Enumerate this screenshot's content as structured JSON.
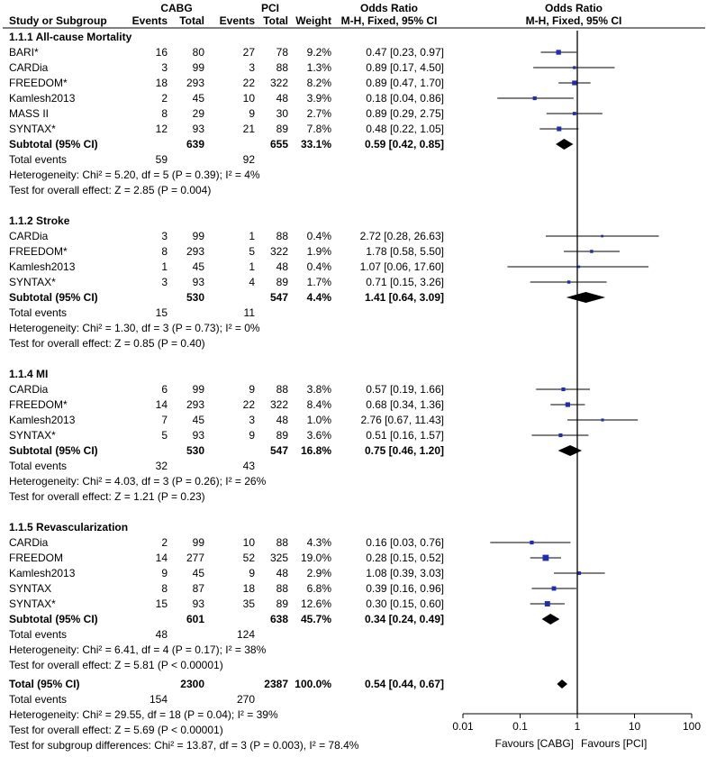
{
  "chart_data": {
    "type": "forest",
    "columns": {
      "group1": "CABG",
      "group2": "PCI",
      "study": "Study or Subgroup",
      "events": "Events",
      "total": "Total",
      "weight": "Weight",
      "or": "Odds Ratio",
      "method": "M-H, Fixed, 95% CI"
    },
    "axis": {
      "scale": "log",
      "ticks": [
        "0.01",
        "0.1",
        "1",
        "10",
        "100"
      ],
      "tick_values": [
        0.01,
        0.1,
        1,
        10,
        100
      ],
      "xlim": [
        0.01,
        100
      ],
      "favours_left": "Favours [CABG]",
      "favours_right": "Favours [PCI]"
    },
    "subgroups": [
      {
        "title": "1.1.1 All-cause Mortality",
        "studies": [
          {
            "name": "BARI*",
            "e1": "16",
            "t1": "80",
            "e2": "27",
            "t2": "78",
            "weight": "9.2%",
            "ci_text": "0.47 [0.23, 0.97]",
            "or": 0.47,
            "lo": 0.23,
            "hi": 0.97
          },
          {
            "name": "CARDia",
            "e1": "3",
            "t1": "99",
            "e2": "3",
            "t2": "88",
            "weight": "1.3%",
            "ci_text": "0.89 [0.17, 4.50]",
            "or": 0.89,
            "lo": 0.17,
            "hi": 4.5
          },
          {
            "name": "FREEDOM*",
            "e1": "18",
            "t1": "293",
            "e2": "22",
            "t2": "322",
            "weight": "8.2%",
            "ci_text": "0.89 [0.47, 1.70]",
            "or": 0.89,
            "lo": 0.47,
            "hi": 1.7
          },
          {
            "name": "Kamlesh2013",
            "e1": "2",
            "t1": "45",
            "e2": "10",
            "t2": "48",
            "weight": "3.9%",
            "ci_text": "0.18 [0.04, 0.86]",
            "or": 0.18,
            "lo": 0.04,
            "hi": 0.86
          },
          {
            "name": "MASS II",
            "e1": "8",
            "t1": "29",
            "e2": "9",
            "t2": "30",
            "weight": "2.7%",
            "ci_text": "0.89 [0.29, 2.75]",
            "or": 0.89,
            "lo": 0.29,
            "hi": 2.75
          },
          {
            "name": "SYNTAX*",
            "e1": "12",
            "t1": "93",
            "e2": "21",
            "t2": "89",
            "weight": "7.8%",
            "ci_text": "0.48 [0.22, 1.05]",
            "or": 0.48,
            "lo": 0.22,
            "hi": 1.05
          }
        ],
        "subtotal": {
          "label": "Subtotal (95% CI)",
          "t1": "639",
          "t2": "655",
          "weight": "33.1%",
          "ci_text": "0.59 [0.42, 0.85]",
          "or": 0.59,
          "lo": 0.42,
          "hi": 0.85
        },
        "total_events": {
          "label": "Total events",
          "e1": "59",
          "e2": "92"
        },
        "heterogeneity": "Heterogeneity: Chi² = 5.20, df = 5 (P = 0.39); I² = 4%",
        "overall_effect": "Test for overall effect: Z = 2.85 (P = 0.004)"
      },
      {
        "title": "1.1.2 Stroke",
        "studies": [
          {
            "name": "CARDia",
            "e1": "3",
            "t1": "99",
            "e2": "1",
            "t2": "88",
            "weight": "0.4%",
            "ci_text": "2.72 [0.28, 26.63]",
            "or": 2.72,
            "lo": 0.28,
            "hi": 26.63
          },
          {
            "name": "FREEDOM*",
            "e1": "8",
            "t1": "293",
            "e2": "5",
            "t2": "322",
            "weight": "1.9%",
            "ci_text": "1.78 [0.58, 5.50]",
            "or": 1.78,
            "lo": 0.58,
            "hi": 5.5
          },
          {
            "name": "Kamlesh2013",
            "e1": "1",
            "t1": "45",
            "e2": "1",
            "t2": "48",
            "weight": "0.4%",
            "ci_text": "1.07 [0.06, 17.60]",
            "or": 1.07,
            "lo": 0.06,
            "hi": 17.6
          },
          {
            "name": "SYNTAX*",
            "e1": "3",
            "t1": "93",
            "e2": "4",
            "t2": "89",
            "weight": "1.7%",
            "ci_text": "0.71 [0.15, 3.26]",
            "or": 0.71,
            "lo": 0.15,
            "hi": 3.26
          }
        ],
        "subtotal": {
          "label": "Subtotal (95% CI)",
          "t1": "530",
          "t2": "547",
          "weight": "4.4%",
          "ci_text": "1.41 [0.64, 3.09]",
          "or": 1.41,
          "lo": 0.64,
          "hi": 3.09
        },
        "total_events": {
          "label": "Total events",
          "e1": "15",
          "e2": "11"
        },
        "heterogeneity": "Heterogeneity: Chi² = 1.30, df = 3 (P = 0.73); I² = 0%",
        "overall_effect": "Test for overall effect: Z = 0.85 (P = 0.40)"
      },
      {
        "title": "1.1.4 MI",
        "studies": [
          {
            "name": "CARDia",
            "e1": "6",
            "t1": "99",
            "e2": "9",
            "t2": "88",
            "weight": "3.8%",
            "ci_text": "0.57 [0.19, 1.66]",
            "or": 0.57,
            "lo": 0.19,
            "hi": 1.66
          },
          {
            "name": "FREEDOM*",
            "e1": "14",
            "t1": "293",
            "e2": "22",
            "t2": "322",
            "weight": "8.4%",
            "ci_text": "0.68 [0.34, 1.36]",
            "or": 0.68,
            "lo": 0.34,
            "hi": 1.36
          },
          {
            "name": "Kamlesh2013",
            "e1": "7",
            "t1": "45",
            "e2": "3",
            "t2": "48",
            "weight": "1.0%",
            "ci_text": "2.76 [0.67, 11.43]",
            "or": 2.76,
            "lo": 0.67,
            "hi": 11.43
          },
          {
            "name": "SYNTAX*",
            "e1": "5",
            "t1": "93",
            "e2": "9",
            "t2": "89",
            "weight": "3.6%",
            "ci_text": "0.51 [0.16, 1.57]",
            "or": 0.51,
            "lo": 0.16,
            "hi": 1.57
          }
        ],
        "subtotal": {
          "label": "Subtotal (95% CI)",
          "t1": "530",
          "t2": "547",
          "weight": "16.8%",
          "ci_text": "0.75 [0.46, 1.20]",
          "or": 0.75,
          "lo": 0.46,
          "hi": 1.2
        },
        "total_events": {
          "label": "Total events",
          "e1": "32",
          "e2": "43"
        },
        "heterogeneity": "Heterogeneity: Chi² = 4.03, df = 3 (P = 0.26); I² = 26%",
        "overall_effect": "Test for overall effect: Z = 1.21 (P = 0.23)"
      },
      {
        "title": "1.1.5 Revascularization",
        "studies": [
          {
            "name": "CARDia",
            "e1": "2",
            "t1": "99",
            "e2": "10",
            "t2": "88",
            "weight": "4.3%",
            "ci_text": "0.16 [0.03, 0.76]",
            "or": 0.16,
            "lo": 0.03,
            "hi": 0.76
          },
          {
            "name": "FREEDOM",
            "e1": "14",
            "t1": "277",
            "e2": "52",
            "t2": "325",
            "weight": "19.0%",
            "ci_text": "0.28 [0.15, 0.52]",
            "or": 0.28,
            "lo": 0.15,
            "hi": 0.52
          },
          {
            "name": "Kamlesh2013",
            "e1": "9",
            "t1": "45",
            "e2": "9",
            "t2": "48",
            "weight": "2.9%",
            "ci_text": "1.08 [0.39, 3.03]",
            "or": 1.08,
            "lo": 0.39,
            "hi": 3.03
          },
          {
            "name": "SYNTAX",
            "e1": "8",
            "t1": "87",
            "e2": "18",
            "t2": "88",
            "weight": "6.8%",
            "ci_text": "0.39 [0.16, 0.96]",
            "or": 0.39,
            "lo": 0.16,
            "hi": 0.96
          },
          {
            "name": "SYNTAX*",
            "e1": "15",
            "t1": "93",
            "e2": "35",
            "t2": "89",
            "weight": "12.6%",
            "ci_text": "0.30 [0.15, 0.60]",
            "or": 0.3,
            "lo": 0.15,
            "hi": 0.6
          }
        ],
        "subtotal": {
          "label": "Subtotal (95% CI)",
          "t1": "601",
          "t2": "638",
          "weight": "45.7%",
          "ci_text": "0.34 [0.24, 0.49]",
          "or": 0.34,
          "lo": 0.24,
          "hi": 0.49
        },
        "total_events": {
          "label": "Total events",
          "e1": "48",
          "e2": "124"
        },
        "heterogeneity": "Heterogeneity: Chi² = 6.41, df = 4 (P = 0.17); I² = 38%",
        "overall_effect": "Test for overall effect: Z = 5.81 (P < 0.00001)"
      }
    ],
    "overall": {
      "label": "Total (95% CI)",
      "t1": "2300",
      "t2": "2387",
      "weight": "100.0%",
      "ci_text": "0.54 [0.44, 0.67]",
      "or": 0.54,
      "lo": 0.44,
      "hi": 0.67,
      "total_events": {
        "label": "Total events",
        "e1": "154",
        "e2": "270"
      },
      "heterogeneity": "Heterogeneity: Chi² = 29.55, df = 18 (P = 0.04); I² = 39%",
      "overall_effect": "Test for overall effect: Z = 5.69 (P < 0.00001)",
      "subgroup_diff": "Test for subgroup differences: Chi² = 13.87, df = 3 (P = 0.003), I² = 78.4%"
    },
    "colors": {
      "marker": "#1f2db4",
      "line": "#000000",
      "text": "#000000"
    }
  }
}
